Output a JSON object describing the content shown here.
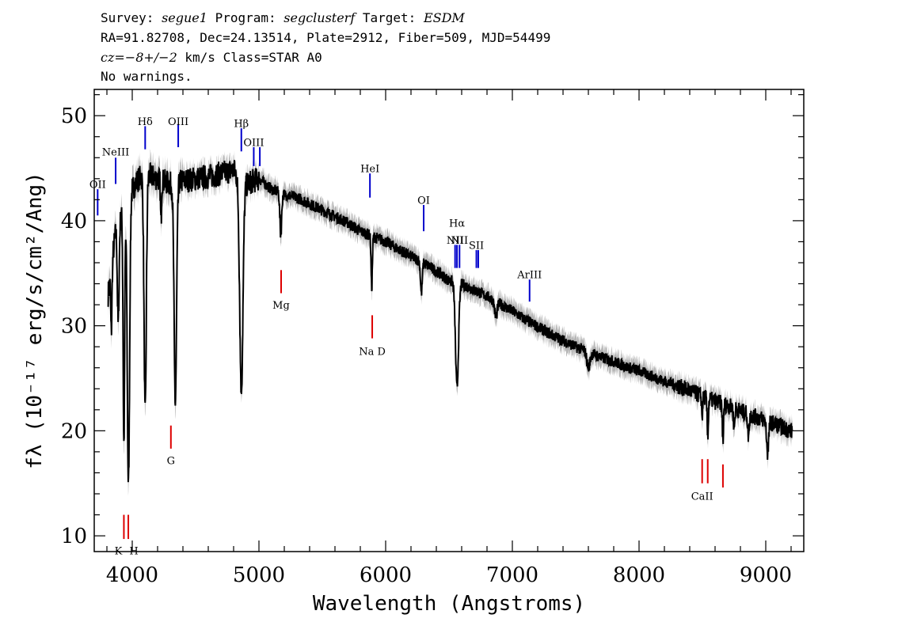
{
  "header": {
    "line1": {
      "survey_label": "Survey: ",
      "survey": "segue1",
      "program_label": " Program: ",
      "program": "segclusterf",
      "target_label": " Target: ",
      "target": "ESDM"
    },
    "line2": "RA=91.82708, Dec=24.13514, Plate=2912, Fiber=509, MJD=54499",
    "line3": {
      "cz": "cz=−8+/−2",
      "rest": " km/s Class=STAR A0"
    },
    "line4": "No warnings."
  },
  "chart_data": {
    "type": "line",
    "xlabel": "Wavelength (Angstroms)",
    "ylabel": "fλ (10⁻¹⁷ erg/s/cm²/Ang)",
    "xlim": [
      3700,
      9300
    ],
    "ylim": [
      8.5,
      52.5
    ],
    "xticks": [
      4000,
      5000,
      6000,
      7000,
      8000,
      9000
    ],
    "yticks": [
      10,
      20,
      30,
      40,
      50
    ],
    "colors": {
      "flux": "#000000",
      "error": "#b4b4b4",
      "emission": "#0000cc",
      "absorption": "#dd0000"
    },
    "continuum": {
      "x": [
        3810,
        3880,
        3950,
        4000,
        4050,
        4100,
        4200,
        4300,
        4400,
        4500,
        4600,
        4700,
        4800,
        4900,
        5000,
        5100,
        5200,
        5300,
        5400,
        5500,
        5600,
        5700,
        5800,
        5900,
        6000,
        6100,
        6200,
        6300,
        6400,
        6500,
        6600,
        6700,
        6800,
        6900,
        7000,
        7100,
        7200,
        7300,
        7400,
        7500,
        7600,
        7700,
        7800,
        7900,
        8000,
        8100,
        8200,
        8300,
        8400,
        8500,
        8600,
        8700,
        8800,
        8900,
        9000,
        9100,
        9200
      ],
      "y": [
        33,
        40,
        41,
        43,
        44,
        44.5,
        44,
        43.5,
        43.8,
        44,
        44.2,
        44.5,
        44.8,
        43.5,
        44,
        43,
        42.5,
        42.2,
        41.6,
        41,
        40.4,
        39.8,
        39,
        38.5,
        38,
        37.3,
        36.6,
        36,
        35.2,
        34.3,
        34,
        33.4,
        32.8,
        32.1,
        31.4,
        30.6,
        29.9,
        29.2,
        28.6,
        28,
        27.5,
        27,
        26.6,
        26.1,
        25.7,
        25.2,
        24.7,
        24.3,
        23.8,
        23.3,
        22.8,
        22.4,
        21.9,
        21.4,
        21,
        20.5,
        20
      ]
    },
    "absorption_features": [
      {
        "center": 3835,
        "depth": 6,
        "width": 5
      },
      {
        "center": 3889,
        "depth": 10,
        "width": 7
      },
      {
        "center": 3934,
        "depth": 22,
        "width": 6
      },
      {
        "center": 3970,
        "depth": 27,
        "width": 9
      },
      {
        "center": 4102,
        "depth": 23,
        "width": 9
      },
      {
        "center": 4227,
        "depth": 4,
        "width": 4
      },
      {
        "center": 4340,
        "depth": 21,
        "width": 10
      },
      {
        "center": 4861,
        "depth": 20,
        "width": 13
      },
      {
        "center": 5172,
        "depth": 4,
        "width": 7
      },
      {
        "center": 5890,
        "depth": 5,
        "width": 5
      },
      {
        "center": 6282,
        "depth": 3,
        "width": 7
      },
      {
        "center": 6563,
        "depth": 10,
        "width": 12
      },
      {
        "center": 6870,
        "depth": 1.5,
        "width": 10
      },
      {
        "center": 7600,
        "depth": 1.5,
        "width": 12
      },
      {
        "center": 8498,
        "depth": 2,
        "width": 4
      },
      {
        "center": 8542,
        "depth": 3.5,
        "width": 5
      },
      {
        "center": 8662,
        "depth": 3.5,
        "width": 5
      },
      {
        "center": 8750,
        "depth": 2,
        "width": 5
      },
      {
        "center": 8863,
        "depth": 2,
        "width": 6
      },
      {
        "center": 9015,
        "depth": 3,
        "width": 8
      }
    ],
    "emission_lines": [
      {
        "name": "OII",
        "wavelength": 3727,
        "y_low": 40.5,
        "y_high": 43,
        "label_y": 43.5
      },
      {
        "name": "NeIII",
        "wavelength": 3869,
        "y_low": 43.5,
        "y_high": 46,
        "label_y": 46.6
      },
      {
        "name": "Hδ",
        "wavelength": 4102,
        "y_low": 46.8,
        "y_high": 49,
        "label_y": 49.5
      },
      {
        "name": "OIII",
        "wavelength": 4363,
        "y_low": 47,
        "y_high": 49.2,
        "label_y": 49.5
      },
      {
        "name": "Hβ",
        "wavelength": 4861,
        "y_low": 46.6,
        "y_high": 48.8,
        "label_y": 49.3
      },
      {
        "name": "OIII",
        "wavelength": 4959,
        "y_low": 45.2,
        "y_high": 47,
        "label_y": 47.5
      },
      {
        "name": "OIII",
        "wavelength": 5007,
        "y_low": 45.2,
        "y_high": 47
      },
      {
        "name": "HeI",
        "wavelength": 5876,
        "y_low": 42.2,
        "y_high": 44.5,
        "label_y": 45
      },
      {
        "name": "OI",
        "wavelength": 6300,
        "y_low": 39,
        "y_high": 41.5,
        "label_y": 42
      },
      {
        "name": "NII",
        "wavelength": 6548,
        "y_low": 35.5,
        "y_high": 37.7,
        "label_y": 38.2
      },
      {
        "name": "Hα",
        "wavelength": 6563,
        "y_low": 35.5,
        "y_high": 37.7,
        "label_y": 39.8
      },
      {
        "name": "NII",
        "wavelength": 6583,
        "y_low": 35.5,
        "y_high": 37.7,
        "label_y": 38.2
      },
      {
        "name": "SII",
        "wavelength": 6716,
        "y_low": 35.5,
        "y_high": 37.2,
        "label_y": 37.7
      },
      {
        "name": "SII",
        "wavelength": 6731,
        "y_low": 35.5,
        "y_high": 37.2
      },
      {
        "name": "ArIII",
        "wavelength": 7136,
        "y_low": 32.3,
        "y_high": 34.4,
        "label_y": 34.9
      }
    ],
    "absorption_lines": [
      {
        "name": "K",
        "wavelength": 3934,
        "y_low": 9.7,
        "y_high": 12,
        "label_y": 8.6,
        "label_dx": -0.5
      },
      {
        "name": "H",
        "wavelength": 3969,
        "y_low": 9.7,
        "y_high": 12,
        "label_y": 8.6,
        "label_dx": 0.5
      },
      {
        "name": "G",
        "wavelength": 4305,
        "y_low": 18.3,
        "y_high": 20.5,
        "label_y": 17.2
      },
      {
        "name": "Mg",
        "wavelength": 5175,
        "y_low": 33.1,
        "y_high": 35.3,
        "label_y": 32
      },
      {
        "name": "Na  D",
        "wavelength": 5894,
        "y_low": 28.8,
        "y_high": 31,
        "label_y": 27.6
      },
      {
        "name": "CaII",
        "wavelength": 8498,
        "y_low": 15,
        "y_high": 17.3,
        "label_y": 13.8
      },
      {
        "name": "CaII",
        "wavelength": 8542,
        "y_low": 15,
        "y_high": 17.3
      },
      {
        "name": "CaII",
        "wavelength": 8662,
        "y_low": 14.6,
        "y_high": 16.8
      }
    ]
  }
}
